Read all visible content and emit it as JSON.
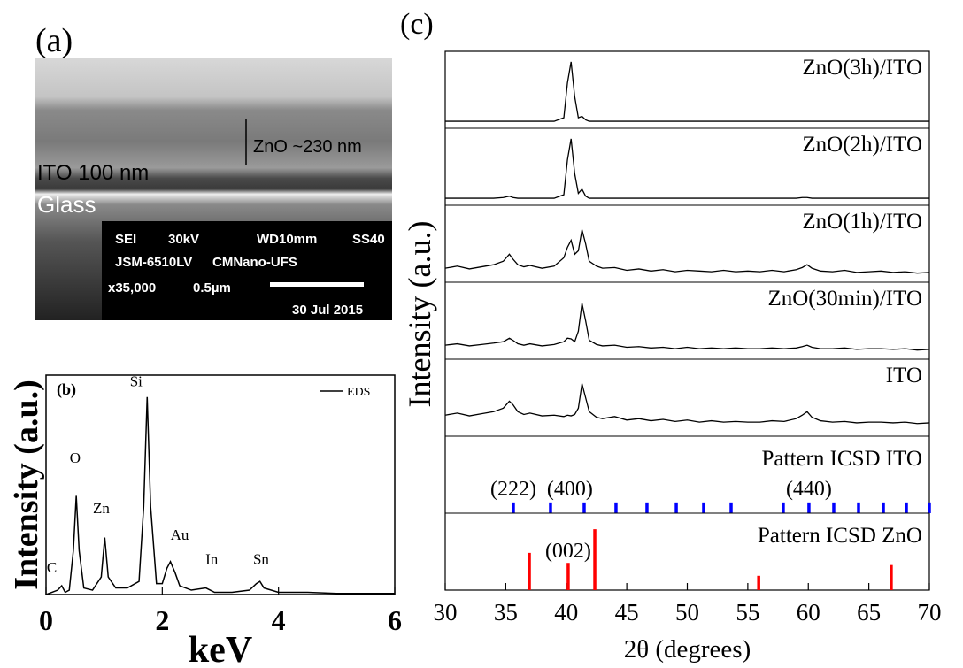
{
  "panel_labels": [
    "(a)",
    "(b)",
    "(c)"
  ],
  "sem_image": {
    "layer_labels": [
      "ZnO ~230 nm",
      "ITO 100 nm",
      "Glass"
    ],
    "info": [
      "SEI",
      "30kV",
      "WD10mm",
      "SS40",
      "JSM-6510LV",
      "CMNano-UFS",
      "x35,000",
      "0.5µm",
      "30 Jul 2015"
    ]
  },
  "chart_data": [
    {
      "type": "line",
      "xlabel": "keV",
      "ylabel": "Intensity (a.u.)",
      "xlim": [
        0,
        6
      ],
      "xticks": [
        0,
        2,
        4,
        6
      ],
      "ylim": [
        0,
        1
      ],
      "x": [
        0,
        0.1,
        0.2,
        0.27,
        0.33,
        0.4,
        0.47,
        0.52,
        0.57,
        0.65,
        0.8,
        0.95,
        1.01,
        1.07,
        1.2,
        1.4,
        1.6,
        1.68,
        1.74,
        1.8,
        1.9,
        2.0,
        2.08,
        2.14,
        2.22,
        2.3,
        2.5,
        2.75,
        2.9,
        3.2,
        3.5,
        3.62,
        3.68,
        3.75,
        4,
        4.5,
        5,
        5.5,
        6
      ],
      "series": [
        {
          "name": "EDS",
          "color": "#000000",
          "values": [
            0,
            0.01,
            0.02,
            0.04,
            0.01,
            0.02,
            0.2,
            0.45,
            0.2,
            0.03,
            0.02,
            0.08,
            0.26,
            0.08,
            0.03,
            0.03,
            0.06,
            0.4,
            0.9,
            0.4,
            0.05,
            0.05,
            0.12,
            0.15,
            0.1,
            0.04,
            0.02,
            0.03,
            0.01,
            0.01,
            0.02,
            0.05,
            0.06,
            0.03,
            0.01,
            0.01,
            0.005,
            0.005,
            0.005
          ]
        }
      ],
      "annotations": [
        {
          "text": "C",
          "x": 0.1,
          "y": 0.1
        },
        {
          "text": "O",
          "x": 0.5,
          "y": 0.6
        },
        {
          "text": "Zn",
          "x": 0.95,
          "y": 0.37
        },
        {
          "text": "Si",
          "x": 1.55,
          "y": 0.95
        },
        {
          "text": "Au",
          "x": 2.3,
          "y": 0.25
        },
        {
          "text": "In",
          "x": 2.85,
          "y": 0.14
        },
        {
          "text": "Sn",
          "x": 3.7,
          "y": 0.14
        }
      ]
    },
    {
      "type": "line",
      "xlabel": "2θ  (degrees)",
      "ylabel": "Intensity (a.u.)",
      "xlim": [
        30,
        70
      ],
      "xticks": [
        30,
        35,
        40,
        45,
        50,
        55,
        60,
        65,
        70
      ],
      "ylim": [
        0,
        1
      ],
      "x": [
        30,
        31,
        32,
        33,
        34,
        34.8,
        35.3,
        35.6,
        36,
        36.5,
        37,
        38,
        39,
        39.8,
        40.1,
        40.4,
        40.7,
        41,
        41.3,
        41.6,
        41.9,
        42.5,
        43,
        44,
        45,
        46,
        47,
        48,
        49,
        50,
        51,
        52,
        53,
        54,
        55,
        56,
        57,
        58,
        59,
        59.5,
        59.9,
        60.3,
        61,
        62,
        63,
        64,
        65,
        66,
        67,
        68,
        69,
        70
      ],
      "series": [
        {
          "name": "ZnO(3h)/ITO",
          "color": "#000000",
          "values": [
            0.05,
            0.05,
            0.05,
            0.05,
            0.05,
            0.05,
            0.05,
            0.05,
            0.05,
            0.05,
            0.05,
            0.05,
            0.05,
            0.1,
            0.6,
            0.9,
            0.4,
            0.1,
            0.12,
            0.07,
            0.05,
            0.05,
            0.05,
            0.05,
            0.05,
            0.05,
            0.05,
            0.05,
            0.05,
            0.05,
            0.05,
            0.05,
            0.05,
            0.05,
            0.05,
            0.05,
            0.05,
            0.05,
            0.05,
            0.05,
            0.05,
            0.05,
            0.05,
            0.05,
            0.05,
            0.05,
            0.05,
            0.05,
            0.05,
            0.05,
            0.05,
            0.05
          ]
        },
        {
          "name": "ZnO(2h)/ITO",
          "color": "#000000",
          "values": [
            0.05,
            0.05,
            0.05,
            0.05,
            0.05,
            0.06,
            0.08,
            0.06,
            0.05,
            0.05,
            0.05,
            0.05,
            0.05,
            0.1,
            0.6,
            0.9,
            0.4,
            0.12,
            0.18,
            0.08,
            0.05,
            0.05,
            0.05,
            0.05,
            0.05,
            0.05,
            0.05,
            0.05,
            0.05,
            0.05,
            0.05,
            0.05,
            0.05,
            0.05,
            0.05,
            0.05,
            0.05,
            0.05,
            0.05,
            0.06,
            0.06,
            0.05,
            0.05,
            0.05,
            0.05,
            0.05,
            0.05,
            0.05,
            0.05,
            0.05,
            0.05,
            0.05
          ]
        },
        {
          "name": "ZnO(1h)/ITO",
          "color": "#000000",
          "values": [
            0.15,
            0.18,
            0.14,
            0.17,
            0.2,
            0.25,
            0.35,
            0.28,
            0.2,
            0.17,
            0.19,
            0.15,
            0.18,
            0.3,
            0.45,
            0.55,
            0.35,
            0.4,
            0.7,
            0.5,
            0.25,
            0.18,
            0.15,
            0.16,
            0.12,
            0.14,
            0.11,
            0.13,
            0.1,
            0.12,
            0.11,
            0.1,
            0.12,
            0.1,
            0.11,
            0.1,
            0.12,
            0.1,
            0.13,
            0.16,
            0.2,
            0.15,
            0.11,
            0.1,
            0.12,
            0.09,
            0.1,
            0.11,
            0.09,
            0.1,
            0.08,
            0.09
          ]
        },
        {
          "name": "ZnO(30min)/ITO",
          "color": "#000000",
          "values": [
            0.15,
            0.17,
            0.14,
            0.16,
            0.18,
            0.2,
            0.25,
            0.22,
            0.17,
            0.15,
            0.17,
            0.14,
            0.16,
            0.2,
            0.25,
            0.24,
            0.2,
            0.35,
            0.75,
            0.5,
            0.22,
            0.16,
            0.14,
            0.15,
            0.12,
            0.13,
            0.11,
            0.12,
            0.1,
            0.12,
            0.1,
            0.11,
            0.1,
            0.11,
            0.1,
            0.1,
            0.11,
            0.1,
            0.11,
            0.13,
            0.15,
            0.12,
            0.1,
            0.1,
            0.11,
            0.09,
            0.1,
            0.1,
            0.09,
            0.1,
            0.08,
            0.09
          ]
        },
        {
          "name": "ITO",
          "color": "#000000",
          "values": [
            0.25,
            0.28,
            0.24,
            0.27,
            0.3,
            0.35,
            0.45,
            0.4,
            0.3,
            0.26,
            0.28,
            0.24,
            0.25,
            0.23,
            0.25,
            0.24,
            0.26,
            0.35,
            0.7,
            0.5,
            0.3,
            0.22,
            0.2,
            0.23,
            0.18,
            0.2,
            0.17,
            0.19,
            0.16,
            0.18,
            0.15,
            0.17,
            0.15,
            0.16,
            0.15,
            0.15,
            0.17,
            0.16,
            0.2,
            0.25,
            0.3,
            0.22,
            0.17,
            0.15,
            0.16,
            0.14,
            0.15,
            0.15,
            0.14,
            0.15,
            0.13,
            0.14
          ]
        }
      ],
      "stick_patterns": [
        {
          "name": "Pattern ICSD ITO",
          "color": "#0000ff",
          "positions": [
            35.63,
            38.7,
            41.48,
            44.11,
            46.67,
            49.09,
            51.35,
            53.62,
            57.93,
            60.05,
            62.1,
            64.15,
            66.2,
            68.1,
            70
          ],
          "values": [
            0.15,
            0.15,
            0.15,
            0.15,
            0.15,
            0.15,
            0.15,
            0.15,
            0.15,
            0.15,
            0.15,
            0.15,
            0.15,
            0.15,
            0.15
          ],
          "peak_labels": [
            {
              "text": "(222)",
              "x": 35.63
            },
            {
              "text": "(400)",
              "x": 40.3
            },
            {
              "text": "(440)",
              "x": 60.05
            }
          ]
        },
        {
          "name": "Pattern ICSD ZnO",
          "color": "#ff0000",
          "positions": [
            36.95,
            40.16,
            42.36,
            55.9,
            66.85
          ],
          "values": [
            0.52,
            0.38,
            0.85,
            0.2,
            0.35
          ],
          "peak_labels": [
            {
              "text": "(002)",
              "x": 40.16
            }
          ]
        }
      ]
    }
  ]
}
